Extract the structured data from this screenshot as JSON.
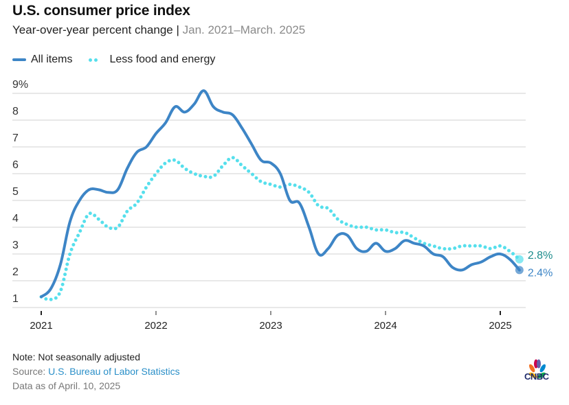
{
  "header": {
    "title": "U.S. consumer price index",
    "subtitle_main": "Year-over-year percent change | ",
    "subtitle_range": "Jan. 2021–March. 2025"
  },
  "legend": {
    "all_items": "All items",
    "core": "Less food and energy"
  },
  "colors": {
    "all_items": "#3d85c6",
    "core": "#56dfec",
    "all_items_label": "#3d85c6",
    "core_label": "#1c8c8c",
    "grid": "#d0d0d0"
  },
  "footer": {
    "note": "Note: Not seasonally adjusted",
    "source_prefix": "Source: ",
    "source_link": "U.S. Bureau of Labor Statistics",
    "as_of": "Data as of April. 10, 2025"
  },
  "logo": {
    "text": "CNBC",
    "icon": "nbc-peacock-icon"
  },
  "chart_data": {
    "type": "line",
    "title": "U.S. consumer price index",
    "subtitle": "Year-over-year percent change | Jan. 2021–March. 2025",
    "xlabel": "",
    "ylabel": "",
    "ylim": [
      1,
      9
    ],
    "y_ticks": [
      1,
      2,
      3,
      4,
      5,
      6,
      7,
      8,
      9
    ],
    "y_tick_labels": [
      "1",
      "2",
      "3",
      "4",
      "5",
      "6",
      "7",
      "8",
      "9%"
    ],
    "x_ticks": [
      "2021",
      "2022",
      "2023",
      "2024",
      "2025"
    ],
    "x_start": "2021-01",
    "x_end": "2025-03",
    "grid": true,
    "legend_position": "top-left",
    "series": [
      {
        "name": "All items",
        "style": "solid",
        "end_label": "2.4%",
        "values": [
          1.4,
          1.7,
          2.6,
          4.2,
          5.0,
          5.4,
          5.4,
          5.3,
          5.4,
          6.2,
          6.8,
          7.0,
          7.5,
          7.9,
          8.5,
          8.3,
          8.6,
          9.1,
          8.5,
          8.3,
          8.2,
          7.7,
          7.1,
          6.5,
          6.4,
          6.0,
          5.0,
          4.9,
          4.0,
          3.0,
          3.2,
          3.7,
          3.7,
          3.2,
          3.1,
          3.4,
          3.1,
          3.2,
          3.5,
          3.4,
          3.3,
          3.0,
          2.9,
          2.5,
          2.4,
          2.6,
          2.7,
          2.9,
          3.0,
          2.8,
          2.4
        ]
      },
      {
        "name": "Less food and energy",
        "style": "dotted",
        "end_label": "2.8%",
        "values": [
          1.4,
          1.3,
          1.6,
          3.0,
          3.8,
          4.5,
          4.3,
          4.0,
          4.0,
          4.6,
          4.9,
          5.5,
          6.0,
          6.4,
          6.5,
          6.2,
          6.0,
          5.9,
          5.9,
          6.3,
          6.6,
          6.3,
          6.0,
          5.7,
          5.6,
          5.5,
          5.6,
          5.5,
          5.3,
          4.8,
          4.7,
          4.3,
          4.1,
          4.0,
          4.0,
          3.9,
          3.9,
          3.8,
          3.8,
          3.6,
          3.4,
          3.3,
          3.2,
          3.2,
          3.3,
          3.3,
          3.3,
          3.2,
          3.3,
          3.1,
          2.8
        ]
      }
    ]
  }
}
